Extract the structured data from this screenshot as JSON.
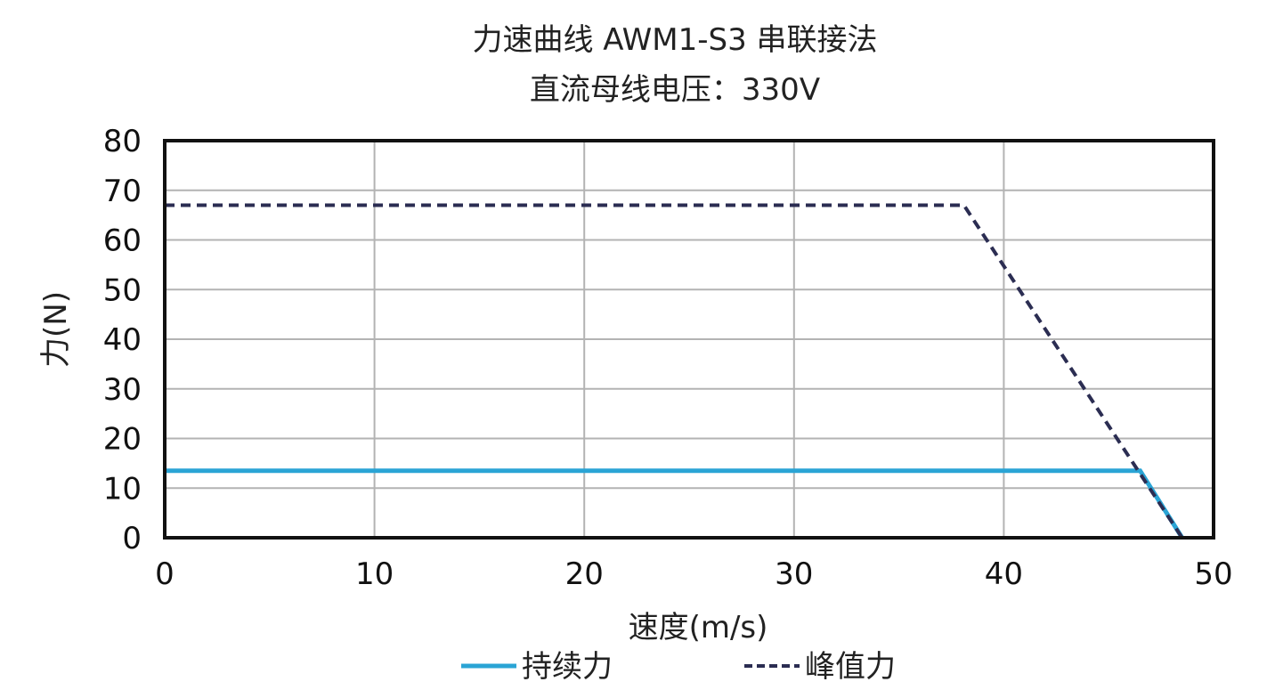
{
  "chart_data": {
    "type": "line",
    "title": "力速曲线 AWM1-S3 串联接法",
    "subtitle": "直流母线电压：330V",
    "xlabel": "速度(m/s)",
    "ylabel": "力(N)",
    "xlim": [
      0,
      50
    ],
    "ylim": [
      0,
      80
    ],
    "x_ticks": [
      0,
      10,
      20,
      30,
      40,
      50
    ],
    "y_ticks": [
      0,
      10,
      20,
      30,
      40,
      50,
      60,
      70,
      80
    ],
    "grid": true,
    "legend_position": "bottom",
    "series": [
      {
        "name": "持续力",
        "color": "#2aa4d5",
        "style": "solid",
        "points": [
          [
            0,
            13.5
          ],
          [
            46.5,
            13.5
          ],
          [
            48.5,
            0
          ]
        ]
      },
      {
        "name": "峰值力",
        "color": "#2b2d52",
        "style": "dashed",
        "points": [
          [
            0,
            67
          ],
          [
            38.1,
            67
          ],
          [
            48.5,
            0
          ]
        ]
      }
    ]
  }
}
